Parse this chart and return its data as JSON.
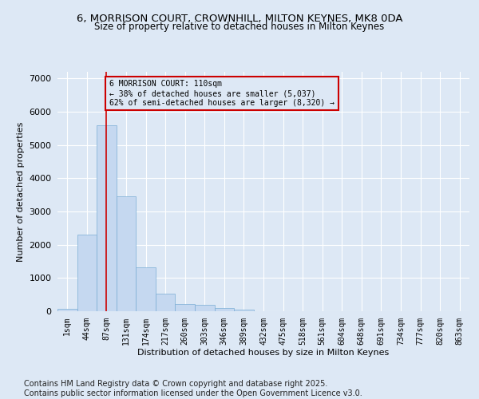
{
  "title_line1": "6, MORRISON COURT, CROWNHILL, MILTON KEYNES, MK8 0DA",
  "title_line2": "Size of property relative to detached houses in Milton Keynes",
  "xlabel": "Distribution of detached houses by size in Milton Keynes",
  "ylabel": "Number of detached properties",
  "bar_values": [
    75,
    2300,
    5600,
    3450,
    1320,
    520,
    215,
    190,
    95,
    55,
    0,
    0,
    0,
    0,
    0,
    0,
    0,
    0,
    0,
    0,
    0
  ],
  "categories": [
    "1sqm",
    "44sqm",
    "87sqm",
    "131sqm",
    "174sqm",
    "217sqm",
    "260sqm",
    "303sqm",
    "346sqm",
    "389sqm",
    "432sqm",
    "475sqm",
    "518sqm",
    "561sqm",
    "604sqm",
    "648sqm",
    "691sqm",
    "734sqm",
    "777sqm",
    "820sqm",
    "863sqm"
  ],
  "bar_color": "#c5d8f0",
  "bar_edge_color": "#7aadd4",
  "background_color": "#dde8f5",
  "grid_color": "#ffffff",
  "vline_x": 2,
  "vline_color": "#cc0000",
  "annotation_box_text": "6 MORRISON COURT: 110sqm\n← 38% of detached houses are smaller (5,037)\n62% of semi-detached houses are larger (8,320) →",
  "annotation_box_color": "#cc0000",
  "ylim": [
    0,
    7200
  ],
  "yticks": [
    0,
    1000,
    2000,
    3000,
    4000,
    5000,
    6000,
    7000
  ],
  "footnote": "Contains HM Land Registry data © Crown copyright and database right 2025.\nContains public sector information licensed under the Open Government Licence v3.0.",
  "footnote_fontsize": 7,
  "title_fontsize": 9.5,
  "subtitle_fontsize": 8.5,
  "label_fontsize": 8,
  "tick_fontsize": 7
}
